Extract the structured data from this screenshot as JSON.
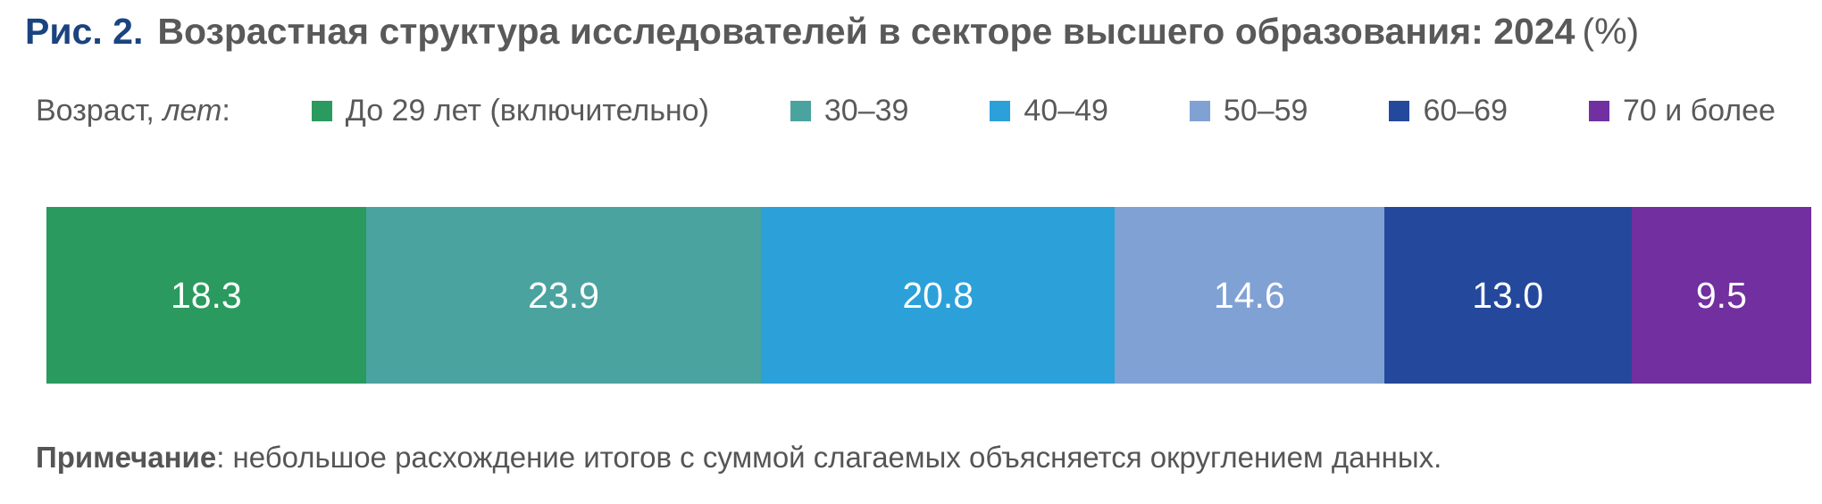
{
  "figure": {
    "label": "Рис. 2.",
    "title": "Возрастная структура исследователей в секторе высшего образования: 2024",
    "unit_suffix": "(%)"
  },
  "legend": {
    "prefix": "Возраст,",
    "prefix_italic": "лет",
    "prefix_colon": ":",
    "items": [
      {
        "label": "До 29 лет (включительно)"
      },
      {
        "label": "30–39"
      },
      {
        "label": "40–49"
      },
      {
        "label": "50–59"
      },
      {
        "label": "60–69"
      },
      {
        "label": "70 и более"
      }
    ]
  },
  "chart_data": {
    "type": "bar",
    "subtype": "horizontal-stacked-100",
    "title": "Возрастная структура исследователей в секторе высшего образования: 2024 (%)",
    "unit": "%",
    "categories": [
      "До 29 лет (включительно)",
      "30–39",
      "40–49",
      "50–59",
      "60–69",
      "70 и более"
    ],
    "values": [
      18.3,
      23.9,
      20.8,
      14.6,
      13.0,
      9.5
    ],
    "display_values": [
      "18.3",
      "23.9",
      "20.8",
      "14.6",
      "13.0",
      "9.5"
    ],
    "colors": [
      "#2a9a5f",
      "#4ba3a0",
      "#2ba0d9",
      "#80a1d3",
      "#24489b",
      "#722f9f"
    ],
    "legend_position": "top",
    "value_labels": "inside-center-white"
  },
  "note": {
    "label": "Примечание",
    "text": ": небольшое расхождение итогов с суммой слагаемых объясняется округлением данных."
  },
  "colors": {
    "figure_label": "#1a4480",
    "title_text": "#595959",
    "legend_text": "#595959",
    "note_text": "#555555",
    "bar_value_text": "#ffffff",
    "background": "#ffffff"
  }
}
